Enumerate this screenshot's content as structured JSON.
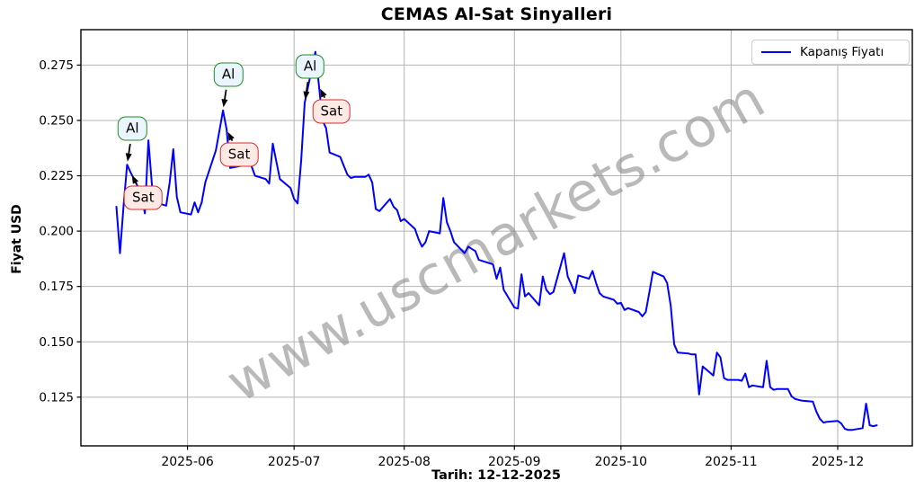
{
  "figure": {
    "title": "CEMAS Al-Sat Sinyalleri"
  },
  "axes": {
    "ylabel": "Fiyat USD",
    "xlabel": "Tarih: 12-12-2025"
  },
  "legend": {
    "position": "top-right",
    "entries": [
      {
        "label": "Kapanış Fiyatı",
        "color": "#0000ff"
      }
    ]
  },
  "watermark": {
    "text": "www.uscmarkets.com",
    "color": "#8c8c8c",
    "opacity": 0.6,
    "rotation_deg": -29
  },
  "colors": {
    "line": "#0000ff",
    "grid": "#b4b4b4",
    "spine": "#000000",
    "arrow": "#000000"
  },
  "chart_data": {
    "type": "line",
    "title": "CEMAS Al-Sat Sinyalleri",
    "xlabel": "Tarih: 12-12-2025",
    "ylabel": "Fiyat USD",
    "grid": true,
    "legend_position": "top-right",
    "xlim": [
      "2025-05-02",
      "2025-12-22"
    ],
    "ylim": [
      0.103,
      0.291
    ],
    "y_ticks": [
      0.125,
      0.15,
      0.175,
      0.2,
      0.225,
      0.25,
      0.275
    ],
    "x_ticks": [
      {
        "date": "2025-06-01",
        "label": "2025-06"
      },
      {
        "date": "2025-07-01",
        "label": "2025-07"
      },
      {
        "date": "2025-08-01",
        "label": "2025-08"
      },
      {
        "date": "2025-09-01",
        "label": "2025-09"
      },
      {
        "date": "2025-10-01",
        "label": "2025-10"
      },
      {
        "date": "2025-11-01",
        "label": "2025-11"
      },
      {
        "date": "2025-12-01",
        "label": "2025-12"
      }
    ],
    "series": [
      {
        "name": "Kapanış Fiyatı",
        "color": "#0000ff",
        "dates": [
          "2025-05-12",
          "2025-05-13",
          "2025-05-14",
          "2025-05-15",
          "2025-05-16",
          "2025-05-19",
          "2025-05-20",
          "2025-05-21",
          "2025-05-22",
          "2025-05-23",
          "2025-05-26",
          "2025-05-27",
          "2025-05-28",
          "2025-05-29",
          "2025-05-30",
          "2025-06-02",
          "2025-06-03",
          "2025-06-04",
          "2025-06-05",
          "2025-06-06",
          "2025-06-09",
          "2025-06-10",
          "2025-06-11",
          "2025-06-12",
          "2025-06-13",
          "2025-06-16",
          "2025-06-17",
          "2025-06-18",
          "2025-06-19",
          "2025-06-20",
          "2025-06-23",
          "2025-06-24",
          "2025-06-25",
          "2025-06-26",
          "2025-06-27",
          "2025-06-30",
          "2025-07-01",
          "2025-07-02",
          "2025-07-03",
          "2025-07-04",
          "2025-07-07",
          "2025-07-08",
          "2025-07-09",
          "2025-07-10",
          "2025-07-11",
          "2025-07-14",
          "2025-07-15",
          "2025-07-16",
          "2025-07-17",
          "2025-07-18",
          "2025-07-21",
          "2025-07-22",
          "2025-07-23",
          "2025-07-24",
          "2025-07-25",
          "2025-07-28",
          "2025-07-29",
          "2025-07-30",
          "2025-07-31",
          "2025-08-01",
          "2025-08-04",
          "2025-08-05",
          "2025-08-06",
          "2025-08-07",
          "2025-08-08",
          "2025-08-11",
          "2025-08-12",
          "2025-08-13",
          "2025-08-14",
          "2025-08-15",
          "2025-08-18",
          "2025-08-19",
          "2025-08-20",
          "2025-08-21",
          "2025-08-22",
          "2025-08-25",
          "2025-08-26",
          "2025-08-27",
          "2025-08-28",
          "2025-08-29",
          "2025-09-01",
          "2025-09-02",
          "2025-09-03",
          "2025-09-04",
          "2025-09-05",
          "2025-09-08",
          "2025-09-09",
          "2025-09-10",
          "2025-09-11",
          "2025-09-12",
          "2025-09-15",
          "2025-09-16",
          "2025-09-17",
          "2025-09-18",
          "2025-09-19",
          "2025-09-22",
          "2025-09-23",
          "2025-09-24",
          "2025-09-25",
          "2025-09-26",
          "2025-09-29",
          "2025-09-30",
          "2025-10-01",
          "2025-10-02",
          "2025-10-03",
          "2025-10-06",
          "2025-10-07",
          "2025-10-08",
          "2025-10-09",
          "2025-10-10",
          "2025-10-13",
          "2025-10-14",
          "2025-10-15",
          "2025-10-16",
          "2025-10-17",
          "2025-10-20",
          "2025-10-21",
          "2025-10-22",
          "2025-10-23",
          "2025-10-24",
          "2025-10-27",
          "2025-10-28",
          "2025-10-29",
          "2025-10-30",
          "2025-10-31",
          "2025-11-03",
          "2025-11-04",
          "2025-11-05",
          "2025-11-06",
          "2025-11-07",
          "2025-11-10",
          "2025-11-11",
          "2025-11-12",
          "2025-11-13",
          "2025-11-14",
          "2025-11-17",
          "2025-11-18",
          "2025-11-19",
          "2025-11-20",
          "2025-11-21",
          "2025-11-24",
          "2025-11-25",
          "2025-11-26",
          "2025-11-27",
          "2025-11-28",
          "2025-12-01",
          "2025-12-02",
          "2025-12-03",
          "2025-12-04",
          "2025-12-05",
          "2025-12-08",
          "2025-12-09",
          "2025-12-10",
          "2025-12-11",
          "2025-12-12"
        ],
        "values": [
          0.211,
          0.19,
          0.211,
          0.23,
          0.2265,
          0.217,
          0.208,
          0.241,
          0.2205,
          0.213,
          0.2115,
          0.222,
          0.237,
          0.2155,
          0.2085,
          0.2075,
          0.213,
          0.2085,
          0.213,
          0.222,
          0.2365,
          0.2455,
          0.2545,
          0.246,
          0.2285,
          0.2295,
          0.23,
          0.23,
          0.2295,
          0.225,
          0.2235,
          0.2215,
          0.2395,
          0.2315,
          0.2235,
          0.2195,
          0.2145,
          0.2125,
          0.232,
          0.258,
          0.281,
          0.2655,
          0.25,
          0.2465,
          0.2355,
          0.2335,
          0.2295,
          0.2255,
          0.224,
          0.2245,
          0.2245,
          0.2255,
          0.222,
          0.21,
          0.209,
          0.2145,
          0.211,
          0.2095,
          0.2045,
          0.2055,
          0.201,
          0.1965,
          0.193,
          0.195,
          0.2,
          0.199,
          0.215,
          0.204,
          0.2,
          0.195,
          0.19,
          0.193,
          0.192,
          0.191,
          0.187,
          0.1855,
          0.185,
          0.1785,
          0.1835,
          0.1735,
          0.1655,
          0.165,
          0.1805,
          0.1705,
          0.172,
          0.1665,
          0.1795,
          0.1735,
          0.1715,
          0.1725,
          0.19,
          0.1795,
          0.176,
          0.172,
          0.18,
          0.1785,
          0.182,
          0.1765,
          0.172,
          0.1705,
          0.169,
          0.1672,
          0.1676,
          0.1644,
          0.1652,
          0.1635,
          0.1615,
          0.1635,
          0.1725,
          0.1816,
          0.1795,
          0.1766,
          0.1664,
          0.1488,
          0.1451,
          0.1447,
          0.1443,
          0.1443,
          0.1262,
          0.1389,
          0.1348,
          0.1451,
          0.143,
          0.1336,
          0.1328,
          0.1328,
          0.1324,
          0.1357,
          0.1295,
          0.1303,
          0.1295,
          0.1414,
          0.1295,
          0.1283,
          0.1287,
          0.1287,
          0.1254,
          0.1242,
          0.1238,
          0.1234,
          0.123,
          0.1184,
          0.1152,
          0.1135,
          0.1139,
          0.1143,
          0.1131,
          0.1107,
          0.1102,
          0.1102,
          0.111,
          0.1221,
          0.1123,
          0.1119,
          0.1123
        ]
      }
    ],
    "signals": [
      {
        "type": "Al",
        "label": "Al",
        "date": "2025-05-15",
        "value": 0.23
      },
      {
        "type": "Sat",
        "label": "Sat",
        "date": "2025-05-16",
        "value": 0.2265
      },
      {
        "type": "Al",
        "label": "Al",
        "date": "2025-06-11",
        "value": 0.2545
      },
      {
        "type": "Sat",
        "label": "Sat",
        "date": "2025-06-12",
        "value": 0.246
      },
      {
        "type": "Al",
        "label": "Al",
        "date": "2025-07-04",
        "value": 0.258
      },
      {
        "type": "Sat",
        "label": "Sat",
        "date": "2025-07-08",
        "value": 0.2655
      }
    ],
    "annotation_styles": {
      "Al": {
        "fill": "#ebf5fd",
        "border": "#1e8c22",
        "offset": [
          6,
          -40
        ]
      },
      "Sat": {
        "fill": "#fdeae5",
        "border": "#dc2a2a",
        "offset": [
          14,
          28
        ]
      }
    }
  }
}
